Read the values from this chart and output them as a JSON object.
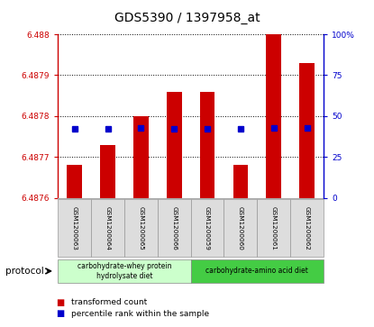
{
  "title": "GDS5390 / 1397958_at",
  "samples": [
    "GSM1200063",
    "GSM1200064",
    "GSM1200065",
    "GSM1200066",
    "GSM1200059",
    "GSM1200060",
    "GSM1200061",
    "GSM1200062"
  ],
  "bar_tops": [
    6.48768,
    6.48773,
    6.4878,
    6.48786,
    6.48786,
    6.48768,
    6.48818,
    6.48793
  ],
  "bar_base": 6.4876,
  "percentile_pct": [
    42,
    42,
    43,
    42,
    42,
    42,
    43,
    43
  ],
  "ylim_left": [
    6.4876,
    6.488
  ],
  "ylim_right": [
    0,
    100
  ],
  "yticks_left": [
    6.4876,
    6.4877,
    6.4878,
    6.4879,
    6.488
  ],
  "ytick_labels_left": [
    "6.4876",
    "6.4877",
    "6.4878",
    "6.4879",
    "6.488"
  ],
  "yticks_right": [
    0,
    25,
    50,
    75,
    100
  ],
  "ytick_labels_right": [
    "0",
    "25",
    "50",
    "75",
    "100%"
  ],
  "bar_color": "#cc0000",
  "percentile_color": "#0000cc",
  "group1_label": "carbohydrate-whey protein\nhydrolysate diet",
  "group1_count": 4,
  "group1_color": "#ccffcc",
  "group2_label": "carbohydrate-amino acid diet",
  "group2_count": 4,
  "group2_color": "#44cc44",
  "protocol_label": "protocol",
  "legend_bar_label": "transformed count",
  "legend_pct_label": "percentile rank within the sample",
  "left_color": "#cc0000",
  "right_color": "#0000cc",
  "sample_bg": "#dddddd",
  "plot_bg": "#ffffff"
}
